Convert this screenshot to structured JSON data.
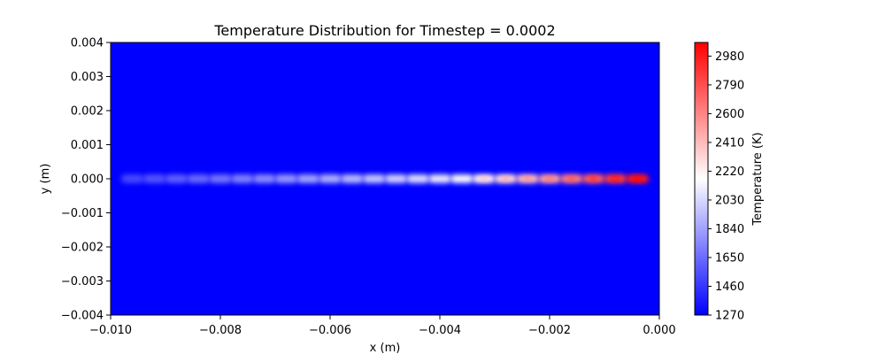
{
  "chart_data": {
    "type": "heatmap",
    "title": "Temperature Distribution for Timestep = 0.0002",
    "xlabel": "x (m)",
    "ylabel": "y (m)",
    "xlim": [
      -0.01,
      0.0
    ],
    "ylim": [
      -0.004,
      0.004
    ],
    "x_ticks": [
      "−0.010",
      "−0.008",
      "−0.006",
      "−0.004",
      "−0.002",
      "0.000"
    ],
    "y_ticks": [
      "−0.004",
      "−0.003",
      "−0.002",
      "−0.001",
      "0.000",
      "0.001",
      "0.002",
      "0.003",
      "0.004"
    ],
    "grid": false,
    "colormap": "bwr",
    "colorbar": {
      "label": "Temperature (K)",
      "range": [
        1270,
        3070
      ],
      "ticks": [
        "1270",
        "1460",
        "1650",
        "1840",
        "2030",
        "2220",
        "2410",
        "2600",
        "2790",
        "2980"
      ],
      "colors": [
        "#0000ff",
        "#ffffff",
        "#ff0000"
      ]
    },
    "background_temperature": 1270,
    "heat_track": {
      "y_center": 0.0,
      "half_width": 0.00013,
      "spots": [
        {
          "x": -0.0096,
          "temperature": 1520
        },
        {
          "x": -0.0092,
          "temperature": 1560
        },
        {
          "x": -0.0088,
          "temperature": 1600
        },
        {
          "x": -0.0084,
          "temperature": 1640
        },
        {
          "x": -0.008,
          "temperature": 1680
        },
        {
          "x": -0.0076,
          "temperature": 1720
        },
        {
          "x": -0.0072,
          "temperature": 1760
        },
        {
          "x": -0.0068,
          "temperature": 1800
        },
        {
          "x": -0.0064,
          "temperature": 1840
        },
        {
          "x": -0.006,
          "temperature": 1880
        },
        {
          "x": -0.0056,
          "temperature": 1920
        },
        {
          "x": -0.0052,
          "temperature": 1960
        },
        {
          "x": -0.0048,
          "temperature": 2000
        },
        {
          "x": -0.0044,
          "temperature": 2040
        },
        {
          "x": -0.004,
          "temperature": 2080
        },
        {
          "x": -0.0036,
          "temperature": 2140
        },
        {
          "x": -0.0032,
          "temperature": 2220
        },
        {
          "x": -0.0028,
          "temperature": 2300
        },
        {
          "x": -0.0024,
          "temperature": 2400
        },
        {
          "x": -0.002,
          "temperature": 2500
        },
        {
          "x": -0.0016,
          "temperature": 2620
        },
        {
          "x": -0.0012,
          "temperature": 2740
        },
        {
          "x": -0.0008,
          "temperature": 2860
        },
        {
          "x": -0.0004,
          "temperature": 3000
        }
      ]
    }
  }
}
